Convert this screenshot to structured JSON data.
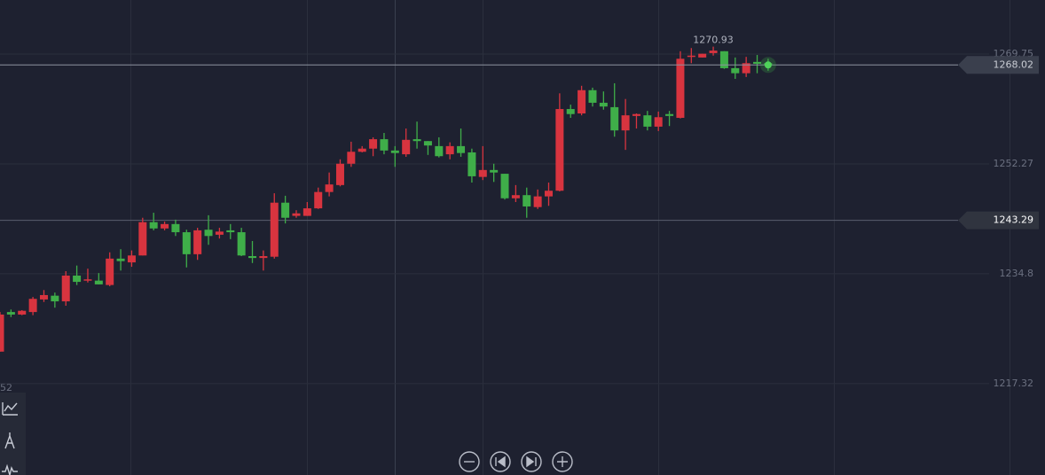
{
  "chart_data": {
    "type": "candlestick",
    "open": [
      1222.4,
      1228.7,
      1228.3,
      1228.7,
      1230.7,
      1231.3,
      1230.4,
      1234.5,
      1233.7,
      1233.7,
      1233.0,
      1237.2,
      1236.6,
      1237.7,
      1243.0,
      1242.0,
      1242.7,
      1241.4,
      1237.9,
      1241.8,
      1241.0,
      1241.7,
      1241.4,
      1237.6,
      1237.3,
      1237.5,
      1246.1,
      1244.0,
      1244.0,
      1245.2,
      1247.8,
      1248.9,
      1252.3,
      1254.2,
      1254.7,
      1256.2,
      1254.4,
      1253.8,
      1256.2,
      1255.9,
      1255.1,
      1253.8,
      1255.1,
      1254.1,
      1250.2,
      1251.3,
      1250.7,
      1246.8,
      1247.3,
      1245.4,
      1247.1,
      1248.0,
      1261.0,
      1260.3,
      1264.0,
      1262.0,
      1261.3,
      1257.6,
      1259.9,
      1260.0,
      1258.2,
      1260.2,
      1259.6,
      1269.3,
      1269.2,
      1269.9,
      1270.2,
      1267.5,
      1266.7,
      1268.5,
      1268.3
    ],
    "high": [
      1228.7,
      1229.1,
      1229.0,
      1231.1,
      1232.2,
      1231.8,
      1235.2,
      1236.1,
      1235.6,
      1234.9,
      1238.2,
      1238.7,
      1238.5,
      1243.7,
      1244.5,
      1243.1,
      1243.4,
      1241.8,
      1242.1,
      1244.1,
      1242.1,
      1242.7,
      1242.1,
      1240.0,
      1238.5,
      1247.6,
      1247.2,
      1244.9,
      1246.2,
      1248.5,
      1250.9,
      1253.0,
      1255.8,
      1255.1,
      1256.5,
      1257.2,
      1255.1,
      1257.9,
      1259.0,
      1255.9,
      1256.5,
      1255.7,
      1257.9,
      1254.7,
      1255.1,
      1252.3,
      1250.7,
      1248.9,
      1248.5,
      1248.2,
      1249.3,
      1263.5,
      1261.7,
      1264.7,
      1264.4,
      1263.8,
      1265.1,
      1262.6,
      1260.3,
      1260.7,
      1260.6,
      1260.7,
      1270.2,
      1270.7,
      1269.8,
      1270.93,
      1270.2,
      1269.2,
      1269.3,
      1269.6,
      1269.0
    ],
    "low": [
      1222.4,
      1227.9,
      1228.2,
      1228.2,
      1230.3,
      1229.4,
      1229.7,
      1233.0,
      1233.4,
      1233.1,
      1232.8,
      1235.3,
      1235.9,
      1237.7,
      1241.7,
      1241.7,
      1240.8,
      1235.8,
      1237.0,
      1239.4,
      1240.4,
      1240.3,
      1237.6,
      1236.5,
      1235.3,
      1237.2,
      1242.8,
      1243.7,
      1244.0,
      1245.1,
      1247.1,
      1248.7,
      1251.8,
      1254.1,
      1253.5,
      1253.8,
      1251.8,
      1253.4,
      1254.7,
      1253.7,
      1253.3,
      1253.0,
      1253.4,
      1249.3,
      1249.7,
      1249.4,
      1246.6,
      1246.2,
      1243.7,
      1245.1,
      1245.6,
      1247.9,
      1259.6,
      1260.0,
      1261.4,
      1260.9,
      1256.6,
      1254.5,
      1257.9,
      1257.6,
      1257.5,
      1258.3,
      1259.5,
      1268.3,
      1269.2,
      1269.5,
      1267.4,
      1265.8,
      1266.1,
      1266.7,
      1267.1
    ],
    "close": [
      1228.3,
      1228.3,
      1228.9,
      1230.8,
      1231.4,
      1230.4,
      1234.5,
      1233.5,
      1233.9,
      1233.1,
      1237.2,
      1236.8,
      1237.7,
      1243.0,
      1242.0,
      1242.7,
      1241.4,
      1237.9,
      1241.7,
      1240.8,
      1241.5,
      1241.4,
      1237.7,
      1237.3,
      1237.6,
      1246.1,
      1243.7,
      1244.4,
      1245.2,
      1247.8,
      1249.0,
      1252.3,
      1254.2,
      1254.7,
      1256.2,
      1254.4,
      1254.0,
      1256.1,
      1255.9,
      1255.2,
      1253.5,
      1255.1,
      1254.0,
      1250.3,
      1251.3,
      1250.9,
      1246.8,
      1247.3,
      1245.5,
      1247.1,
      1248.0,
      1261.0,
      1260.2,
      1264.0,
      1262.0,
      1261.4,
      1257.6,
      1260.0,
      1260.2,
      1258.2,
      1259.7,
      1259.9,
      1269.0,
      1269.5,
      1269.8,
      1270.3,
      1267.5,
      1266.7,
      1268.3,
      1268.2,
      1268.02
    ],
    "up_color": "#d8343f",
    "down_color": "#3fae49",
    "ylim": [
      1202.77,
      1278.35
    ],
    "yticks": [
      1269.75,
      1252.27,
      1234.8,
      1217.32
    ],
    "grid": true,
    "price_line": 1243.29,
    "cut_label": "52"
  }
}
